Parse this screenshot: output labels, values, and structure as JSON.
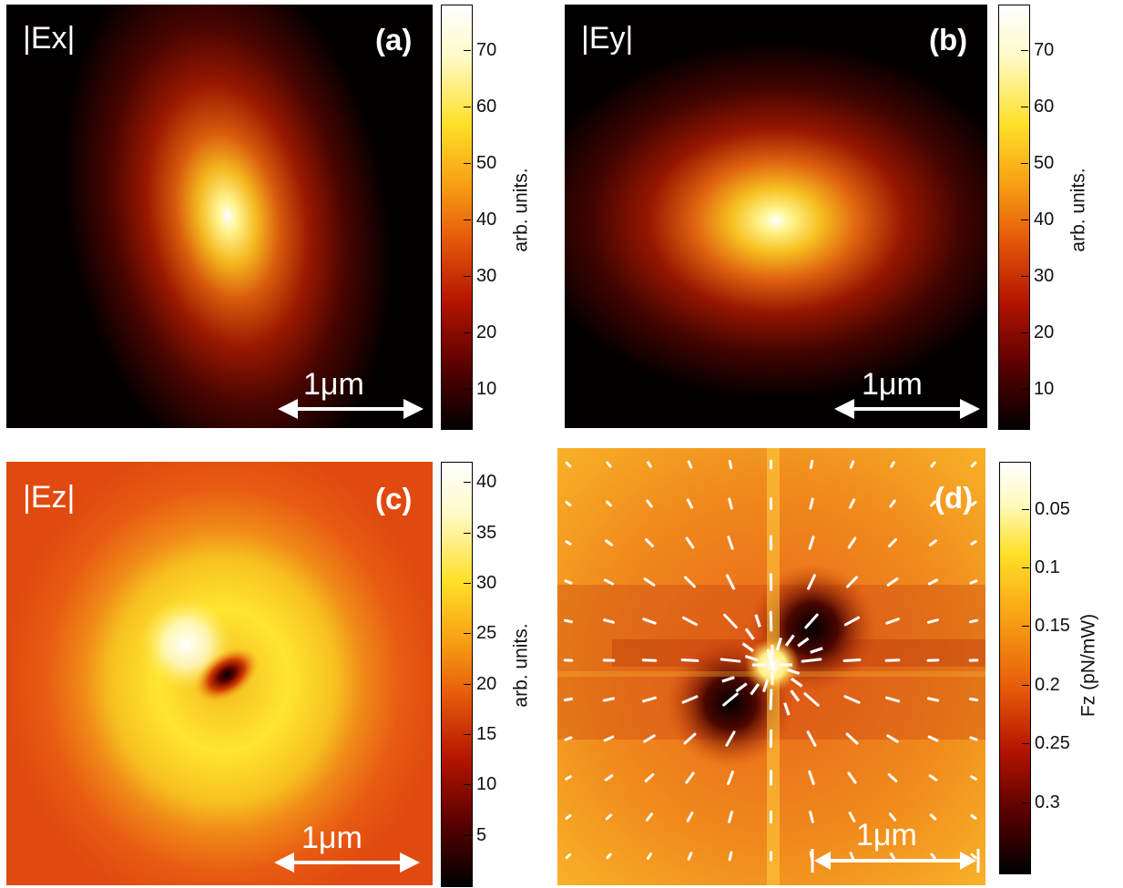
{
  "panels": [
    {
      "id": "a",
      "title": "|Ex|",
      "label": "(a)",
      "scalebar": "1μm"
    },
    {
      "id": "b",
      "title": "|Ey|",
      "label": "(b)",
      "scalebar": "1μm"
    },
    {
      "id": "c",
      "title": "|Ez|",
      "label": "(c)",
      "scalebar": "1μm"
    },
    {
      "id": "d",
      "title": "",
      "label": "(d)",
      "scalebar": "1μm"
    }
  ],
  "colorbars": [
    {
      "id": "a",
      "label": "arb. units.",
      "ticks": [
        "70",
        "60",
        "50",
        "40",
        "30",
        "20",
        "10"
      ],
      "tick_values": [
        70,
        60,
        50,
        40,
        30,
        20,
        10
      ],
      "range": [
        3,
        78
      ]
    },
    {
      "id": "b",
      "label": "arb. units.",
      "ticks": [
        "70",
        "60",
        "50",
        "40",
        "30",
        "20",
        "10"
      ],
      "tick_values": [
        70,
        60,
        50,
        40,
        30,
        20,
        10
      ],
      "range": [
        3,
        78
      ]
    },
    {
      "id": "c",
      "label": "arb. units.",
      "ticks": [
        "40",
        "35",
        "30",
        "25",
        "20",
        "15",
        "10",
        "5"
      ],
      "tick_values": [
        40,
        35,
        30,
        25,
        20,
        15,
        10,
        5
      ],
      "range": [
        0,
        42
      ]
    },
    {
      "id": "d",
      "label": "Fz (pN/mW)",
      "ticks": [
        "0.05",
        "0.1",
        "0.15",
        "0.2",
        "0.25",
        "0.3"
      ],
      "tick_values": [
        0.05,
        0.1,
        0.15,
        0.2,
        0.25,
        0.3
      ],
      "range": [
        0.01,
        0.36
      ]
    }
  ],
  "colors": {
    "hot_dark": "#000000",
    "hot_red": "#c81e00",
    "hot_orange": "#f07818",
    "hot_yellow": "#fff028",
    "hot_white": "#ffffff",
    "arrows": "#ffffff"
  }
}
